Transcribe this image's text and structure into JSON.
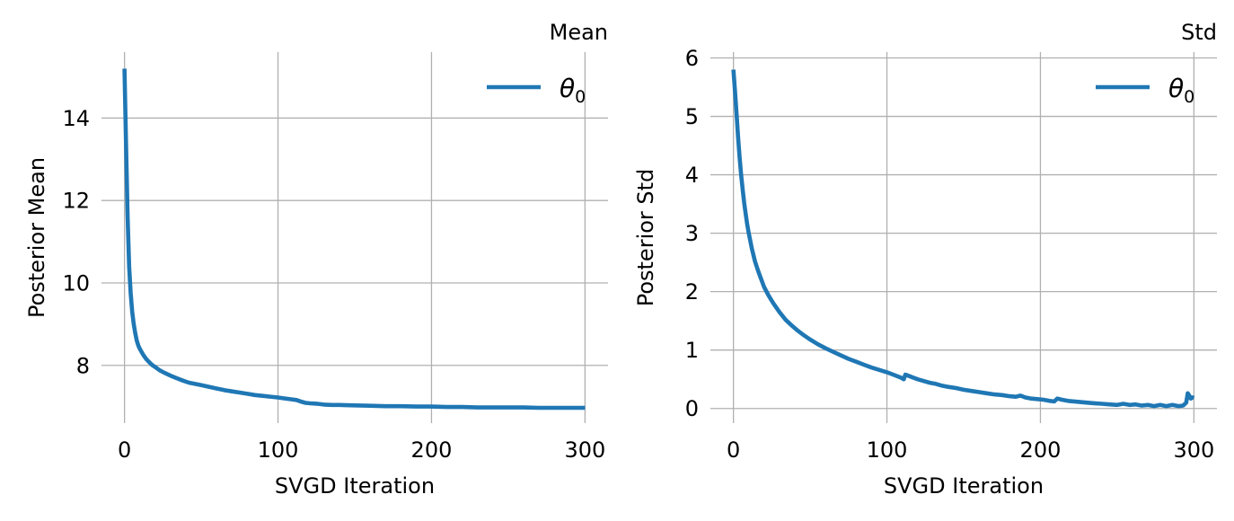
{
  "figure": {
    "background": "#ffffff",
    "grid_color": "#b0b0b0",
    "text_color": "#000000",
    "accent_color": "#1f77b4"
  },
  "chart_data": [
    {
      "type": "line",
      "title": "Mean",
      "title_loc": "right",
      "xlabel": "SVGD Iteration",
      "ylabel": "Posterior Mean",
      "xlim": [
        -15,
        315
      ],
      "ylim": [
        6.6,
        15.6
      ],
      "xticks": [
        0,
        100,
        200,
        300
      ],
      "yticks": [
        8,
        10,
        12,
        14
      ],
      "xtick_labels": [
        "0",
        "100",
        "200",
        "300"
      ],
      "ytick_labels": [
        "8",
        "10",
        "12",
        "14"
      ],
      "grid": true,
      "legend": {
        "loc": "upper right",
        "frame": false,
        "entries": [
          {
            "label_main": "θ",
            "label_sub": "0",
            "color": "#1f77b4"
          }
        ]
      },
      "series": [
        {
          "name": "theta_0",
          "color": "#1f77b4",
          "linewidth": 4.6,
          "points": [
            [
              0,
              15.2
            ],
            [
              1,
              13.4
            ],
            [
              2,
              11.6
            ],
            [
              3,
              10.4
            ],
            [
              4,
              9.75
            ],
            [
              5,
              9.3
            ],
            [
              6,
              9.0
            ],
            [
              7,
              8.78
            ],
            [
              8,
              8.6
            ],
            [
              9,
              8.48
            ],
            [
              10,
              8.4
            ],
            [
              12,
              8.27
            ],
            [
              14,
              8.16
            ],
            [
              16,
              8.08
            ],
            [
              18,
              8.01
            ],
            [
              20,
              7.96
            ],
            [
              23,
              7.88
            ],
            [
              26,
              7.82
            ],
            [
              30,
              7.75
            ],
            [
              34,
              7.69
            ],
            [
              38,
              7.63
            ],
            [
              42,
              7.58
            ],
            [
              46,
              7.55
            ],
            [
              50,
              7.52
            ],
            [
              55,
              7.48
            ],
            [
              60,
              7.44
            ],
            [
              65,
              7.4
            ],
            [
              70,
              7.37
            ],
            [
              75,
              7.34
            ],
            [
              80,
              7.31
            ],
            [
              85,
              7.28
            ],
            [
              90,
              7.26
            ],
            [
              95,
              7.24
            ],
            [
              100,
              7.22
            ],
            [
              104,
              7.2
            ],
            [
              108,
              7.18
            ],
            [
              112,
              7.16
            ],
            [
              115,
              7.12
            ],
            [
              118,
              7.09
            ],
            [
              121,
              7.08
            ],
            [
              125,
              7.07
            ],
            [
              130,
              7.05
            ],
            [
              135,
              7.04
            ],
            [
              140,
              7.04
            ],
            [
              150,
              7.03
            ],
            [
              160,
              7.02
            ],
            [
              170,
              7.01
            ],
            [
              180,
              7.01
            ],
            [
              190,
              7.0
            ],
            [
              200,
              7.0
            ],
            [
              210,
              6.99
            ],
            [
              220,
              6.99
            ],
            [
              230,
              6.98
            ],
            [
              240,
              6.98
            ],
            [
              250,
              6.98
            ],
            [
              260,
              6.98
            ],
            [
              270,
              6.97
            ],
            [
              280,
              6.97
            ],
            [
              290,
              6.97
            ],
            [
              300,
              6.97
            ]
          ]
        }
      ]
    },
    {
      "type": "line",
      "title": "Std",
      "title_loc": "right",
      "xlabel": "SVGD Iteration",
      "ylabel": "Posterior Std",
      "xlim": [
        -15,
        315
      ],
      "ylim": [
        -0.25,
        6.1
      ],
      "xticks": [
        0,
        100,
        200,
        300
      ],
      "yticks": [
        0,
        1,
        2,
        3,
        4,
        5,
        6
      ],
      "xtick_labels": [
        "0",
        "100",
        "200",
        "300"
      ],
      "ytick_labels": [
        "0",
        "1",
        "2",
        "3",
        "4",
        "5",
        "6"
      ],
      "grid": true,
      "legend": {
        "loc": "upper right",
        "frame": false,
        "entries": [
          {
            "label_main": "θ",
            "label_sub": "0",
            "color": "#1f77b4"
          }
        ]
      },
      "series": [
        {
          "name": "theta_0",
          "color": "#1f77b4",
          "linewidth": 4.6,
          "points": [
            [
              0,
              5.8
            ],
            [
              1,
              5.45
            ],
            [
              2,
              5.05
            ],
            [
              3,
              4.65
            ],
            [
              4,
              4.3
            ],
            [
              5,
              4.0
            ],
            [
              6,
              3.75
            ],
            [
              7,
              3.52
            ],
            [
              8,
              3.33
            ],
            [
              9,
              3.15
            ],
            [
              10,
              3.0
            ],
            [
              12,
              2.74
            ],
            [
              14,
              2.52
            ],
            [
              16,
              2.36
            ],
            [
              18,
              2.22
            ],
            [
              20,
              2.08
            ],
            [
              23,
              1.93
            ],
            [
              26,
              1.8
            ],
            [
              30,
              1.65
            ],
            [
              34,
              1.52
            ],
            [
              38,
              1.42
            ],
            [
              42,
              1.33
            ],
            [
              46,
              1.25
            ],
            [
              50,
              1.18
            ],
            [
              55,
              1.1
            ],
            [
              60,
              1.03
            ],
            [
              65,
              0.97
            ],
            [
              70,
              0.91
            ],
            [
              75,
              0.85
            ],
            [
              80,
              0.8
            ],
            [
              85,
              0.75
            ],
            [
              90,
              0.7
            ],
            [
              95,
              0.66
            ],
            [
              100,
              0.62
            ],
            [
              104,
              0.58
            ],
            [
              107,
              0.55
            ],
            [
              109,
              0.53
            ],
            [
              111,
              0.5
            ],
            [
              112,
              0.58
            ],
            [
              114,
              0.56
            ],
            [
              117,
              0.53
            ],
            [
              120,
              0.5
            ],
            [
              124,
              0.47
            ],
            [
              128,
              0.44
            ],
            [
              132,
              0.42
            ],
            [
              136,
              0.39
            ],
            [
              140,
              0.37
            ],
            [
              145,
              0.35
            ],
            [
              150,
              0.32
            ],
            [
              155,
              0.3
            ],
            [
              160,
              0.28
            ],
            [
              165,
              0.26
            ],
            [
              170,
              0.24
            ],
            [
              175,
              0.23
            ],
            [
              180,
              0.21
            ],
            [
              184,
              0.2
            ],
            [
              187,
              0.22
            ],
            [
              190,
              0.19
            ],
            [
              194,
              0.17
            ],
            [
              198,
              0.16
            ],
            [
              202,
              0.15
            ],
            [
              206,
              0.13
            ],
            [
              209,
              0.12
            ],
            [
              211,
              0.17
            ],
            [
              214,
              0.15
            ],
            [
              218,
              0.13
            ],
            [
              222,
              0.12
            ],
            [
              226,
              0.11
            ],
            [
              230,
              0.1
            ],
            [
              235,
              0.09
            ],
            [
              240,
              0.08
            ],
            [
              245,
              0.07
            ],
            [
              250,
              0.06
            ],
            [
              254,
              0.08
            ],
            [
              258,
              0.06
            ],
            [
              262,
              0.07
            ],
            [
              266,
              0.05
            ],
            [
              270,
              0.06
            ],
            [
              274,
              0.04
            ],
            [
              278,
              0.06
            ],
            [
              282,
              0.04
            ],
            [
              286,
              0.06
            ],
            [
              290,
              0.04
            ],
            [
              293,
              0.05
            ],
            [
              295,
              0.1
            ],
            [
              296,
              0.26
            ],
            [
              297,
              0.22
            ],
            [
              298,
              0.17
            ],
            [
              299,
              0.19
            ],
            [
              300,
              0.18
            ]
          ]
        }
      ]
    }
  ]
}
